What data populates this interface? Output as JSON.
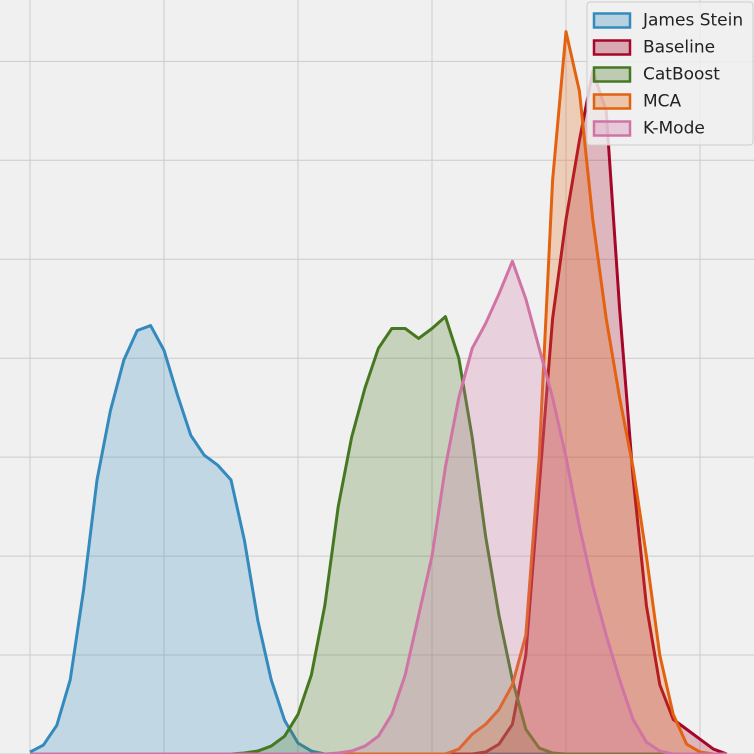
{
  "chart_data": {
    "type": "density",
    "x": [
      0.0,
      0.1,
      0.2,
      0.3,
      0.4,
      0.5,
      0.6,
      0.7,
      0.8,
      0.9,
      1.0,
      1.1,
      1.2,
      1.3,
      1.4,
      1.5,
      1.6,
      1.7,
      1.8,
      1.9,
      2.0,
      2.1,
      2.2,
      2.3,
      2.4,
      2.5,
      2.6,
      2.7,
      2.8,
      2.9,
      3.0,
      3.1,
      3.2,
      3.3,
      3.4,
      3.5,
      3.6,
      3.7,
      3.8,
      3.9,
      4.0,
      4.1,
      4.2,
      4.3,
      4.4,
      4.5,
      4.6,
      4.7,
      4.8,
      4.9,
      5.0,
      5.1,
      5.2
    ],
    "series": [
      {
        "name": "James Stein",
        "color": "#348abd",
        "values": [
          0.02,
          0.09,
          0.29,
          0.75,
          1.66,
          2.77,
          3.47,
          3.98,
          4.28,
          4.33,
          4.08,
          3.63,
          3.22,
          3.02,
          2.92,
          2.77,
          2.16,
          1.35,
          0.75,
          0.34,
          0.11,
          0.03,
          0,
          0,
          0,
          0,
          0,
          0,
          0,
          0,
          0,
          0,
          0,
          0,
          0,
          0,
          0,
          0,
          0,
          0,
          0,
          0,
          0,
          0,
          0,
          0,
          0,
          0,
          0,
          0,
          0,
          0,
          0
        ]
      },
      {
        "name": "Baseline",
        "color": "#a60628",
        "values": [
          0,
          0,
          0,
          0,
          0,
          0,
          0,
          0,
          0,
          0,
          0,
          0,
          0,
          0,
          0,
          0,
          0,
          0,
          0,
          0,
          0,
          0,
          0,
          0,
          0,
          0,
          0,
          0,
          0,
          0,
          0,
          0,
          0,
          0,
          0.02,
          0.1,
          0.3,
          1.0,
          2.7,
          4.4,
          5.4,
          6.2,
          6.9,
          6.5,
          4.5,
          2.8,
          1.5,
          0.7,
          0.35,
          0.25,
          0.15,
          0.05,
          0
        ]
      },
      {
        "name": "CatBoost",
        "color": "#467821",
        "values": [
          0,
          0,
          0,
          0,
          0,
          0,
          0,
          0,
          0,
          0,
          0,
          0,
          0,
          0,
          0,
          0,
          0.01,
          0.03,
          0.08,
          0.18,
          0.4,
          0.8,
          1.5,
          2.5,
          3.2,
          3.7,
          4.1,
          4.3,
          4.3,
          4.2,
          4.3,
          4.42,
          4.0,
          3.2,
          2.2,
          1.4,
          0.75,
          0.25,
          0.06,
          0.01,
          0,
          0,
          0,
          0,
          0,
          0,
          0,
          0,
          0,
          0,
          0,
          0,
          0
        ]
      },
      {
        "name": "MCA",
        "color": "#e2620f",
        "values": [
          0,
          0,
          0,
          0,
          0,
          0,
          0,
          0,
          0,
          0,
          0,
          0,
          0,
          0,
          0,
          0,
          0,
          0,
          0,
          0,
          0,
          0,
          0,
          0,
          0,
          0,
          0,
          0,
          0,
          0,
          0,
          0,
          0.05,
          0.2,
          0.3,
          0.45,
          0.7,
          1.2,
          3.0,
          5.8,
          7.3,
          6.7,
          5.4,
          4.4,
          3.6,
          2.9,
          2.0,
          1.0,
          0.4,
          0.1,
          0.02,
          0,
          0
        ]
      },
      {
        "name": "K-Mode",
        "color": "#cf74a4",
        "values": [
          0,
          0,
          0,
          0,
          0,
          0,
          0,
          0,
          0,
          0,
          0,
          0,
          0,
          0,
          0,
          0,
          0,
          0,
          0,
          0,
          0,
          0,
          0,
          0.01,
          0.03,
          0.08,
          0.18,
          0.4,
          0.8,
          1.4,
          2.0,
          2.9,
          3.6,
          4.1,
          4.35,
          4.65,
          4.98,
          4.6,
          4.1,
          3.6,
          3.0,
          2.3,
          1.7,
          1.2,
          0.75,
          0.35,
          0.12,
          0.03,
          0,
          0,
          0,
          0,
          0
        ]
      }
    ],
    "xlim": [
      -0.224,
      5.403
    ],
    "ylim": [
      0,
      7.62
    ],
    "xticks": [
      0,
      1,
      2,
      3,
      4,
      5
    ],
    "yticks": [
      0,
      1,
      2,
      3,
      4,
      5,
      6,
      7
    ],
    "grid": true,
    "legend": "upper right"
  }
}
